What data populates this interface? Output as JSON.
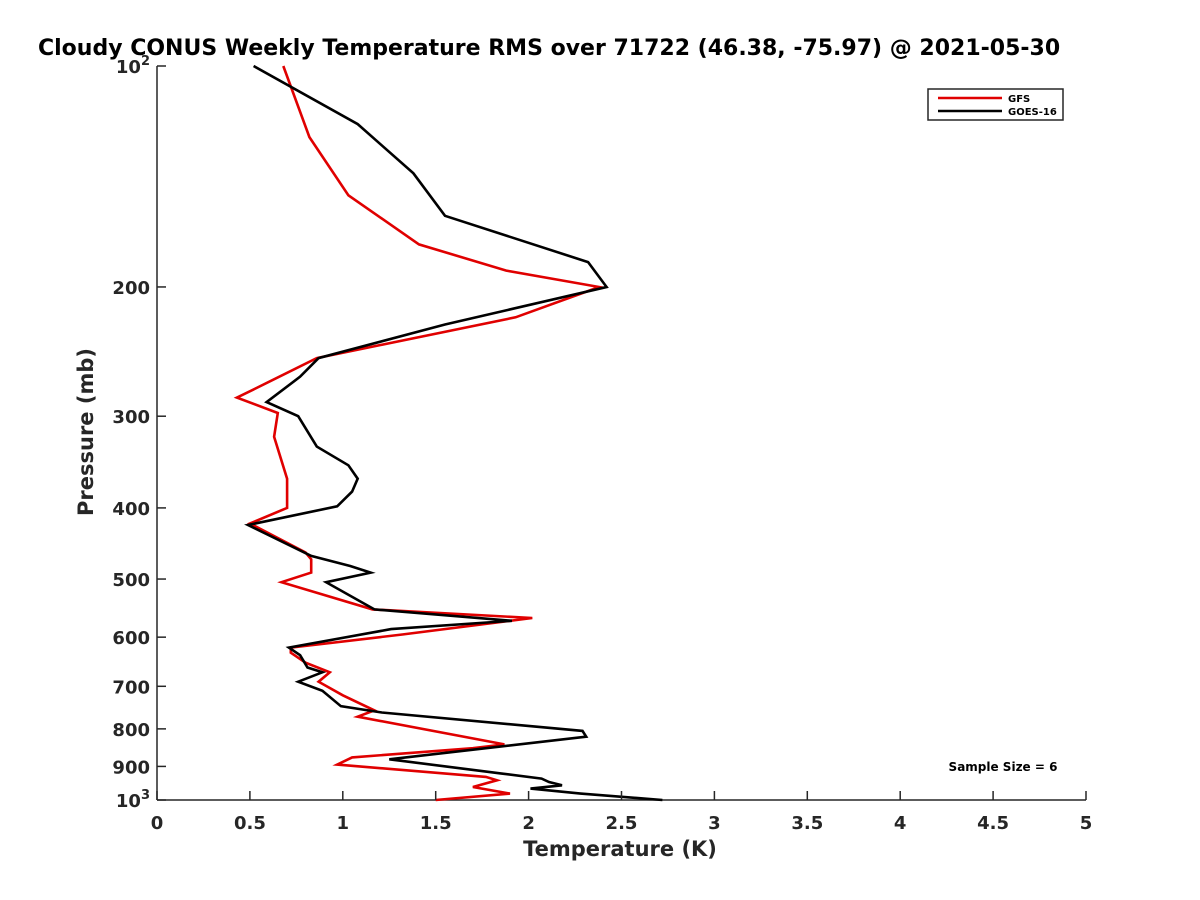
{
  "chart_data": {
    "type": "line",
    "title": "Cloudy CONUS Weekly Temperature RMS over 71722 (46.38, -75.97) @ 2021-05-30",
    "xlabel": "Temperature (K)",
    "ylabel": "Pressure (mb)",
    "xlim": [
      0,
      5
    ],
    "ylim": [
      100,
      1000
    ],
    "y_scale": "log",
    "y_reversed": true,
    "x_ticks": [
      "0",
      "0.5",
      "1",
      "1.5",
      "2",
      "2.5",
      "3",
      "3.5",
      "4",
      "4.5",
      "5"
    ],
    "y_ticks": [
      {
        "value": 100,
        "base": "10",
        "exp": "2"
      },
      {
        "value": 200,
        "label": "200"
      },
      {
        "value": 300,
        "label": "300"
      },
      {
        "value": 400,
        "label": "400"
      },
      {
        "value": 500,
        "label": "500"
      },
      {
        "value": 600,
        "label": "600"
      },
      {
        "value": 700,
        "label": "700"
      },
      {
        "value": 800,
        "label": "800"
      },
      {
        "value": 900,
        "label": "900"
      },
      {
        "value": 1000,
        "base": "10",
        "exp": "3"
      }
    ],
    "grid": false,
    "legend_position": "top-right",
    "annotation": "Sample Size = 6",
    "series": [
      {
        "name": "GFS",
        "color": "#e00000",
        "points": [
          [
            0.68,
            100
          ],
          [
            0.82,
            125
          ],
          [
            1.03,
            150
          ],
          [
            1.41,
            175
          ],
          [
            1.88,
            190
          ],
          [
            2.38,
            200
          ],
          [
            1.93,
            220
          ],
          [
            0.86,
            250
          ],
          [
            0.53,
            275
          ],
          [
            0.43,
            283
          ],
          [
            0.65,
            297
          ],
          [
            0.63,
            320
          ],
          [
            0.7,
            365
          ],
          [
            0.7,
            400
          ],
          [
            0.5,
            420
          ],
          [
            0.8,
            460
          ],
          [
            0.83,
            470
          ],
          [
            0.83,
            490
          ],
          [
            0.67,
            505
          ],
          [
            1.16,
            550
          ],
          [
            2.02,
            565
          ],
          [
            1.32,
            595
          ],
          [
            0.72,
            620
          ],
          [
            0.72,
            630
          ],
          [
            0.8,
            650
          ],
          [
            0.93,
            670
          ],
          [
            0.87,
            690
          ],
          [
            1.0,
            720
          ],
          [
            1.17,
            755
          ],
          [
            1.08,
            770
          ],
          [
            1.87,
            840
          ],
          [
            1.7,
            850
          ],
          [
            1.05,
            875
          ],
          [
            0.97,
            895
          ],
          [
            1.77,
            930
          ],
          [
            1.83,
            940
          ],
          [
            1.7,
            960
          ],
          [
            1.9,
            980
          ],
          [
            1.5,
            1000
          ]
        ]
      },
      {
        "name": "GOES-16",
        "color": "#000000",
        "points": [
          [
            0.52,
            100
          ],
          [
            1.08,
            120
          ],
          [
            1.38,
            140
          ],
          [
            1.55,
            160
          ],
          [
            2.32,
            185
          ],
          [
            2.42,
            200
          ],
          [
            1.55,
            225
          ],
          [
            0.87,
            250
          ],
          [
            0.77,
            265
          ],
          [
            0.59,
            287
          ],
          [
            0.76,
            300
          ],
          [
            0.86,
            330
          ],
          [
            1.03,
            350
          ],
          [
            1.08,
            365
          ],
          [
            1.05,
            380
          ],
          [
            0.97,
            398
          ],
          [
            0.49,
            422
          ],
          [
            0.83,
            465
          ],
          [
            1.04,
            480
          ],
          [
            1.15,
            490
          ],
          [
            0.91,
            505
          ],
          [
            1.17,
            550
          ],
          [
            1.91,
            570
          ],
          [
            1.26,
            585
          ],
          [
            0.71,
            620
          ],
          [
            0.77,
            635
          ],
          [
            0.81,
            660
          ],
          [
            0.89,
            670
          ],
          [
            0.76,
            690
          ],
          [
            0.89,
            710
          ],
          [
            0.99,
            745
          ],
          [
            1.21,
            760
          ],
          [
            2.29,
            805
          ],
          [
            2.31,
            820
          ],
          [
            1.25,
            880
          ],
          [
            1.85,
            920
          ],
          [
            2.07,
            935
          ],
          [
            2.11,
            945
          ],
          [
            2.18,
            955
          ],
          [
            2.01,
            965
          ],
          [
            2.28,
            980
          ],
          [
            2.72,
            1000
          ]
        ]
      }
    ]
  }
}
